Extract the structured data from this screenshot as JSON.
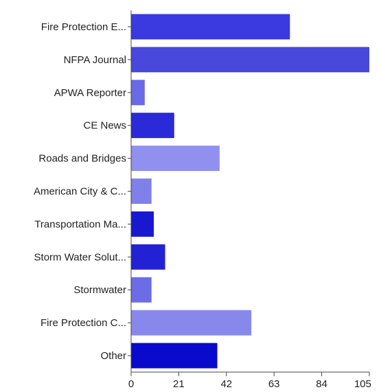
{
  "chart_data": {
    "type": "bar",
    "orientation": "horizontal",
    "title": "",
    "xlabel": "",
    "ylabel": "",
    "categories": [
      "Fire Protection E...",
      "NFPA Journal",
      "APWA Reporter",
      "CE News",
      "Roads and Bridges",
      "American City & C...",
      "Transportation Ma...",
      "Storm Water Solut...",
      "Stormwater",
      "Fire Protection C...",
      "Other"
    ],
    "values": [
      70,
      106,
      6,
      19,
      39,
      9,
      10,
      15,
      9,
      53,
      38
    ],
    "colors": [
      "#3a3ae0",
      "#4848dc",
      "#6a6ae6",
      "#2a2ad8",
      "#9090ee",
      "#8080ea",
      "#1818d0",
      "#2222d4",
      "#6c6ce6",
      "#8888ec",
      "#0a0acc"
    ],
    "xlim": [
      0,
      105
    ],
    "xticks": [
      0,
      21,
      42,
      63,
      84,
      105
    ],
    "grid": false,
    "legend": "none"
  }
}
